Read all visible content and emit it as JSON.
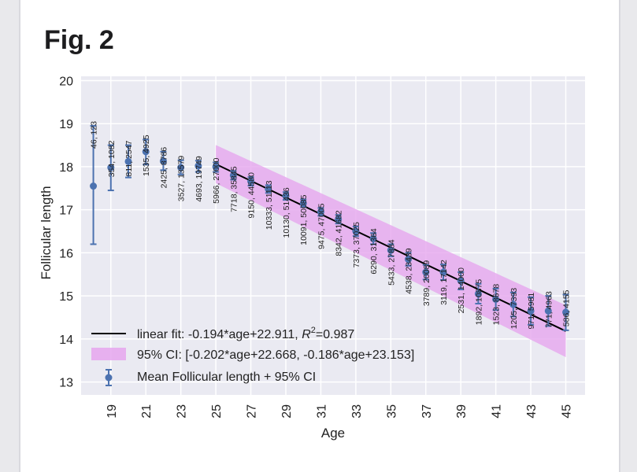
{
  "figure": {
    "title": "Fig. 2"
  },
  "colors": {
    "background": "#eaeaf2",
    "grid": "#ffffff",
    "points": "#4c72b0",
    "fit_line": "#000000",
    "ci_band": "#e6a6ee"
  },
  "chart_data": {
    "type": "scatter",
    "title": "",
    "xlabel": "Age",
    "ylabel": "Follicular length",
    "xlim": [
      17.3,
      46.1
    ],
    "ylim": [
      12.7,
      20.1
    ],
    "xticks": [
      19,
      21,
      23,
      25,
      27,
      29,
      31,
      33,
      35,
      37,
      39,
      41,
      43,
      45
    ],
    "yticks": [
      13,
      14,
      15,
      16,
      17,
      18,
      19,
      20
    ],
    "grid": true,
    "legend_position": "lower-left",
    "points": [
      {
        "age": 18,
        "mean": 17.55,
        "ci_low": 16.2,
        "ci_high": 18.95,
        "n_label": "46, 123"
      },
      {
        "age": 19,
        "mean": 17.98,
        "ci_low": 17.45,
        "ci_high": 18.5,
        "n_label": "354, 1082"
      },
      {
        "age": 20,
        "mean": 18.12,
        "ci_low": 17.75,
        "ci_high": 18.5,
        "n_label": "811, 2547"
      },
      {
        "age": 21,
        "mean": 18.35,
        "ci_low": 18.05,
        "ci_high": 18.63,
        "n_label": "1535, 4925"
      },
      {
        "age": 22,
        "mean": 18.13,
        "ci_low": 17.92,
        "ci_high": 18.35,
        "n_label": "2425, 8786"
      },
      {
        "age": 23,
        "mean": 17.98,
        "ci_low": 17.82,
        "ci_high": 18.15,
        "n_label": "3527, 13579"
      },
      {
        "age": 24,
        "mean": 18.02,
        "ci_low": 17.88,
        "ci_high": 18.14,
        "n_label": "4693, 19749"
      },
      {
        "age": 25,
        "mean": 18.0,
        "ci_low": 17.88,
        "ci_high": 18.1,
        "n_label": "5966, 27000"
      },
      {
        "age": 26,
        "mean": 17.8,
        "ci_low": 17.7,
        "ci_high": 17.9,
        "n_label": "7718, 35845"
      },
      {
        "age": 27,
        "mean": 17.66,
        "ci_low": 17.56,
        "ci_high": 17.76,
        "n_label": "9150, 44580"
      },
      {
        "age": 28,
        "mean": 17.48,
        "ci_low": 17.39,
        "ci_high": 17.57,
        "n_label": "10333, 51113"
      },
      {
        "age": 29,
        "mean": 17.32,
        "ci_low": 17.23,
        "ci_high": 17.41,
        "n_label": "10130, 51436"
      },
      {
        "age": 30,
        "mean": 17.15,
        "ci_low": 17.06,
        "ci_high": 17.24,
        "n_label": "10091, 50085"
      },
      {
        "age": 31,
        "mean": 16.95,
        "ci_low": 16.86,
        "ci_high": 17.04,
        "n_label": "9475, 47005"
      },
      {
        "age": 32,
        "mean": 16.78,
        "ci_low": 16.68,
        "ci_high": 16.88,
        "n_label": "8342, 41682"
      },
      {
        "age": 33,
        "mean": 16.5,
        "ci_low": 16.39,
        "ci_high": 16.61,
        "n_label": "7373, 37025"
      },
      {
        "age": 34,
        "mean": 16.33,
        "ci_low": 16.2,
        "ci_high": 16.46,
        "n_label": "6290, 31364"
      },
      {
        "age": 35,
        "mean": 16.06,
        "ci_low": 15.92,
        "ci_high": 16.2,
        "n_label": "5433, 27884"
      },
      {
        "age": 36,
        "mean": 15.85,
        "ci_low": 15.7,
        "ci_high": 16.0,
        "n_label": "4538, 23439"
      },
      {
        "age": 37,
        "mean": 15.55,
        "ci_low": 15.38,
        "ci_high": 15.72,
        "n_label": "3789, 20089"
      },
      {
        "age": 38,
        "mean": 15.55,
        "ci_low": 15.37,
        "ci_high": 15.73,
        "n_label": "3119, 17142"
      },
      {
        "age": 39,
        "mean": 15.35,
        "ci_low": 15.15,
        "ci_high": 15.55,
        "n_label": "2531, 14000"
      },
      {
        "age": 40,
        "mean": 15.05,
        "ci_low": 14.82,
        "ci_high": 15.28,
        "n_label": "1892, 10875"
      },
      {
        "age": 41,
        "mean": 14.92,
        "ci_low": 14.67,
        "ci_high": 15.17,
        "n_label": "1523, 8678"
      },
      {
        "age": 42,
        "mean": 14.8,
        "ci_low": 14.52,
        "ci_high": 15.08,
        "n_label": "1205, 7393"
      },
      {
        "age": 43,
        "mean": 14.65,
        "ci_low": 14.33,
        "ci_high": 14.97,
        "n_label": "971, 5981"
      },
      {
        "age": 44,
        "mean": 14.65,
        "ci_low": 14.3,
        "ci_high": 15.0,
        "n_label": "771, 4963"
      },
      {
        "age": 45,
        "mean": 14.62,
        "ci_low": 14.2,
        "ci_high": 15.03,
        "n_label": "586, 4155"
      }
    ],
    "fit": {
      "slope": -0.194,
      "intercept": 22.911,
      "x_range": [
        25,
        45
      ]
    },
    "ci_band": {
      "lower": {
        "slope": -0.202,
        "intercept": 22.668
      },
      "upper": {
        "slope": -0.186,
        "intercept": 23.153
      },
      "x_range": [
        25,
        45
      ]
    },
    "legend": [
      {
        "marker": "line",
        "label": "linear fit: -0.194*age+22.911, ",
        "r2_label": "R",
        "r2_sup": "2",
        "r2_value": "=0.987"
      },
      {
        "marker": "band",
        "label": "95% CI: [-0.202*age+22.668, -0.186*age+23.153]"
      },
      {
        "marker": "errorbar",
        "label": "Mean Follicular length + 95% CI"
      }
    ]
  }
}
